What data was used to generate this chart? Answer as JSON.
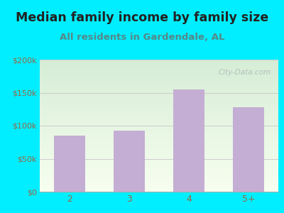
{
  "title": "Median family income by family size",
  "subtitle": "All residents in Gardendale, AL",
  "categories": [
    "2",
    "3",
    "4",
    "5+"
  ],
  "values": [
    85000,
    93000,
    155000,
    128000
  ],
  "bar_color": "#c4aed4",
  "title_fontsize": 12.5,
  "subtitle_fontsize": 9.5,
  "title_color": "#222222",
  "subtitle_color": "#558888",
  "tick_color": "#996644",
  "background_outer": "#00eeff",
  "ylim": [
    0,
    200000
  ],
  "yticks": [
    0,
    50000,
    100000,
    150000,
    200000
  ],
  "ytick_labels": [
    "$0",
    "$50k",
    "$100k",
    "$150k",
    "$200k"
  ],
  "watermark": "City-Data.com",
  "grid_color": "#cccccc",
  "bg_color_top_left": "#d8edd8",
  "bg_color_bottom_right": "#f5fff0"
}
